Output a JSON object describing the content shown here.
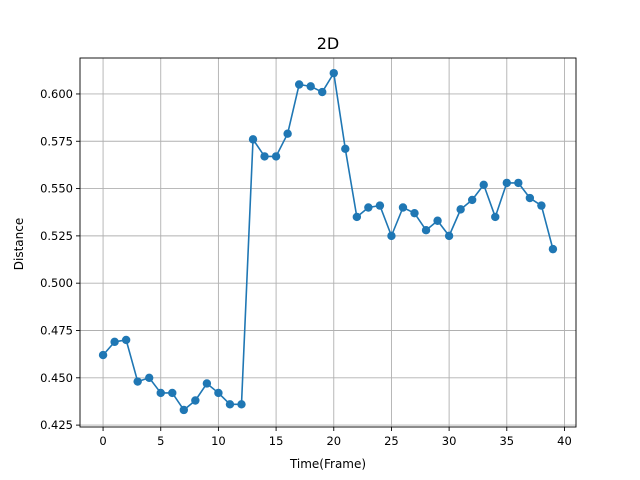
{
  "chart_data": {
    "type": "line",
    "title": "2D",
    "xlabel": "Time(Frame)",
    "ylabel": "Distance",
    "xlim": [
      -2,
      41
    ],
    "ylim": [
      0.424,
      0.619
    ],
    "xticks": [
      0,
      5,
      10,
      15,
      20,
      25,
      30,
      35,
      40
    ],
    "yticks": [
      0.425,
      0.45,
      0.475,
      0.5,
      0.525,
      0.55,
      0.575,
      0.6
    ],
    "ytick_labels": [
      "0.425",
      "0.450",
      "0.475",
      "0.500",
      "0.525",
      "0.550",
      "0.575",
      "0.600"
    ],
    "grid": true,
    "marker": "circle",
    "color": "#1f77b4",
    "series": [
      {
        "x": [
          0,
          1,
          2,
          3,
          4,
          5,
          6,
          7,
          8,
          9,
          10,
          11,
          12,
          13,
          14,
          15,
          16,
          17,
          18,
          19,
          20,
          21,
          22,
          23,
          24,
          25,
          26,
          27,
          28,
          29,
          30,
          31,
          32,
          33,
          34,
          35,
          36,
          37,
          38,
          39
        ],
        "values": [
          0.462,
          0.469,
          0.47,
          0.448,
          0.45,
          0.442,
          0.442,
          0.433,
          0.438,
          0.447,
          0.442,
          0.436,
          0.436,
          0.576,
          0.567,
          0.567,
          0.579,
          0.605,
          0.604,
          0.601,
          0.611,
          0.571,
          0.535,
          0.54,
          0.541,
          0.525,
          0.54,
          0.537,
          0.528,
          0.533,
          0.525,
          0.539,
          0.544,
          0.552,
          0.535,
          0.553,
          0.553,
          0.545,
          0.541,
          0.518
        ]
      }
    ]
  }
}
